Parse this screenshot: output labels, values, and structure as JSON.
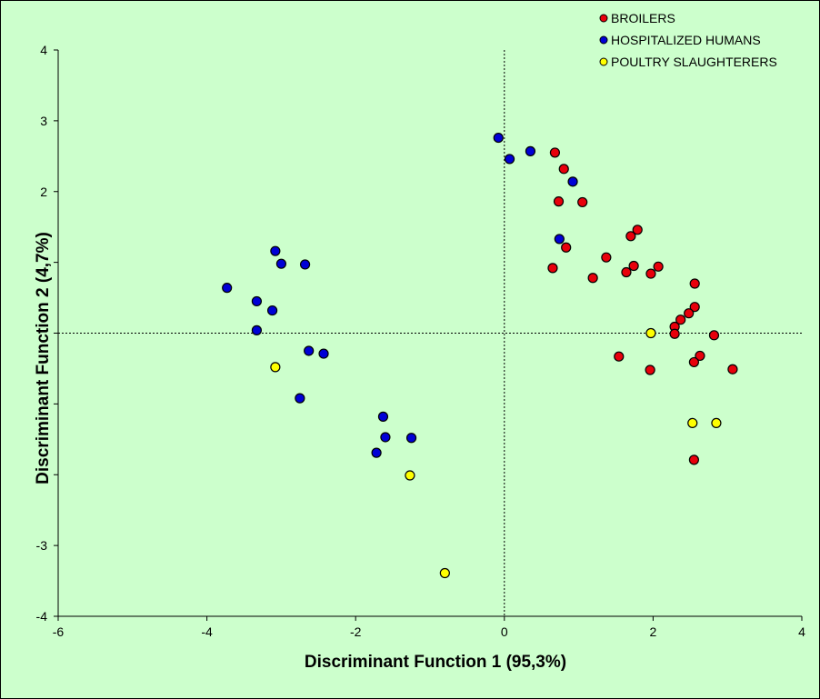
{
  "chart_data": {
    "type": "scatter",
    "xlabel": "Discriminant Function 1 (95,3%)",
    "ylabel": "Discriminant Function 2 (4,7%)",
    "xlim": [
      -6,
      4
    ],
    "ylim": [
      -4,
      4
    ],
    "x_ticks": [
      "-6",
      "-4",
      "-2",
      "0",
      "2",
      "4"
    ],
    "y_ticks": [
      "-4",
      "-3",
      "",
      "",
      "",
      "",
      "2",
      "3",
      "4"
    ],
    "grid": false,
    "reference_lines": "dashed lines at x=0 and y=0",
    "legend_position": "top-right",
    "series": [
      {
        "name": "BROILERS",
        "color": "#e8000b",
        "points": [
          [
            0.68,
            2.55
          ],
          [
            0.8,
            2.32
          ],
          [
            0.73,
            1.86
          ],
          [
            1.05,
            1.85
          ],
          [
            1.79,
            1.46
          ],
          [
            1.7,
            1.37
          ],
          [
            0.83,
            1.21
          ],
          [
            1.37,
            1.07
          ],
          [
            1.74,
            0.95
          ],
          [
            2.07,
            0.94
          ],
          [
            0.65,
            0.92
          ],
          [
            1.64,
            0.86
          ],
          [
            1.97,
            0.84
          ],
          [
            1.19,
            0.78
          ],
          [
            2.56,
            0.7
          ],
          [
            2.56,
            0.37
          ],
          [
            2.48,
            0.28
          ],
          [
            2.37,
            0.19
          ],
          [
            2.29,
            0.09
          ],
          [
            2.29,
            -0.01
          ],
          [
            2.82,
            -0.03
          ],
          [
            1.54,
            -0.33
          ],
          [
            2.63,
            -0.32
          ],
          [
            2.55,
            -0.41
          ],
          [
            1.96,
            -0.52
          ],
          [
            3.07,
            -0.51
          ],
          [
            2.55,
            -1.79
          ]
        ]
      },
      {
        "name": "HOSPITALIZED HUMANS",
        "color": "#0000d6",
        "points": [
          [
            -0.08,
            2.76
          ],
          [
            0.07,
            2.46
          ],
          [
            0.35,
            2.57
          ],
          [
            0.92,
            2.14
          ],
          [
            0.74,
            1.33
          ],
          [
            -3.08,
            1.16
          ],
          [
            -3.0,
            0.98
          ],
          [
            -2.68,
            0.97
          ],
          [
            -3.73,
            0.64
          ],
          [
            -3.33,
            0.45
          ],
          [
            -3.12,
            0.32
          ],
          [
            -3.33,
            0.04
          ],
          [
            -2.63,
            -0.25
          ],
          [
            -2.43,
            -0.29
          ],
          [
            -2.75,
            -0.92
          ],
          [
            -1.63,
            -1.18
          ],
          [
            -1.6,
            -1.47
          ],
          [
            -1.25,
            -1.48
          ],
          [
            -1.72,
            -1.69
          ]
        ]
      },
      {
        "name": "POULTRY SLAUGHTERERS",
        "color": "#ffff00",
        "points": [
          [
            1.97,
            0.0
          ],
          [
            -3.08,
            -0.48
          ],
          [
            2.53,
            -1.27
          ],
          [
            2.85,
            -1.27
          ],
          [
            -1.27,
            -2.01
          ],
          [
            -0.8,
            -3.39
          ]
        ]
      }
    ]
  }
}
